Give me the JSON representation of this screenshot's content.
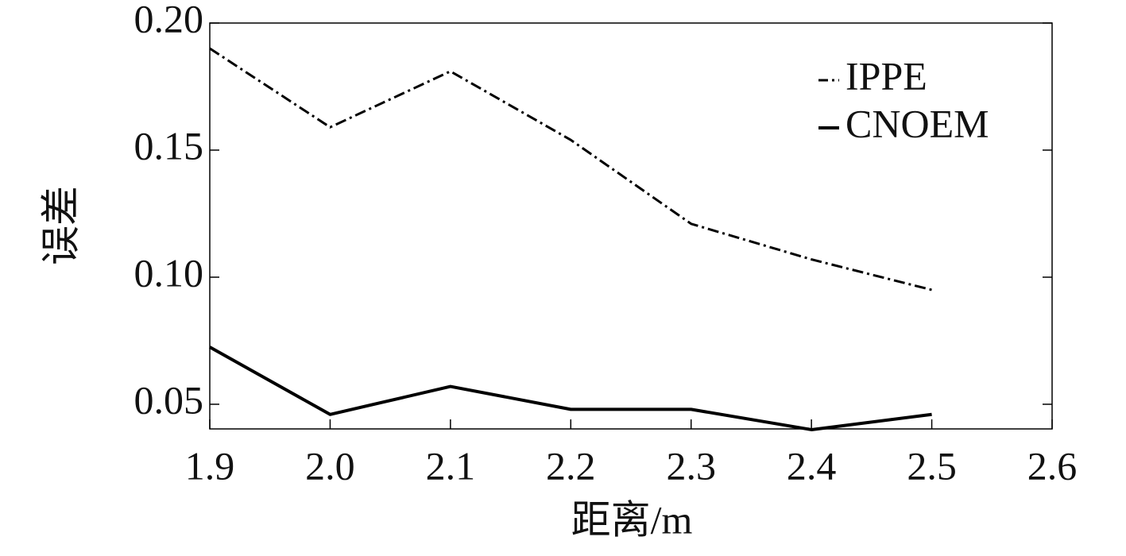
{
  "chart_data": {
    "type": "line",
    "x_label": "距离/m",
    "y_label": "误差",
    "x": [
      1.9,
      2.0,
      2.1,
      2.2,
      2.3,
      2.4,
      2.5
    ],
    "series": [
      {
        "name": "IPPE",
        "color": "#000000",
        "linestyle": "dashdot",
        "values": [
          0.19,
          0.159,
          0.181,
          0.154,
          0.121,
          0.107,
          0.095
        ]
      },
      {
        "name": "CNOEM",
        "color": "#000000",
        "linestyle": "solid",
        "values": [
          0.0725,
          0.046,
          0.057,
          0.048,
          0.048,
          0.04,
          0.046
        ]
      }
    ],
    "xlim": [
      1.9,
      2.6
    ],
    "xticks": [
      1.9,
      {
        "value": 2.0,
        "label": "2.0"
      },
      2.1,
      2.2,
      2.3,
      2.4,
      2.5,
      2.6
    ],
    "ylim": [
      0.0403,
      0.2
    ],
    "yticks": [
      {
        "value": 0.05,
        "label": "0.05"
      },
      {
        "value": 0.1,
        "label": "0.10"
      },
      0.15,
      {
        "value": 0.2,
        "label": "0.20"
      }
    ],
    "grid": false,
    "legend": "upper right"
  }
}
